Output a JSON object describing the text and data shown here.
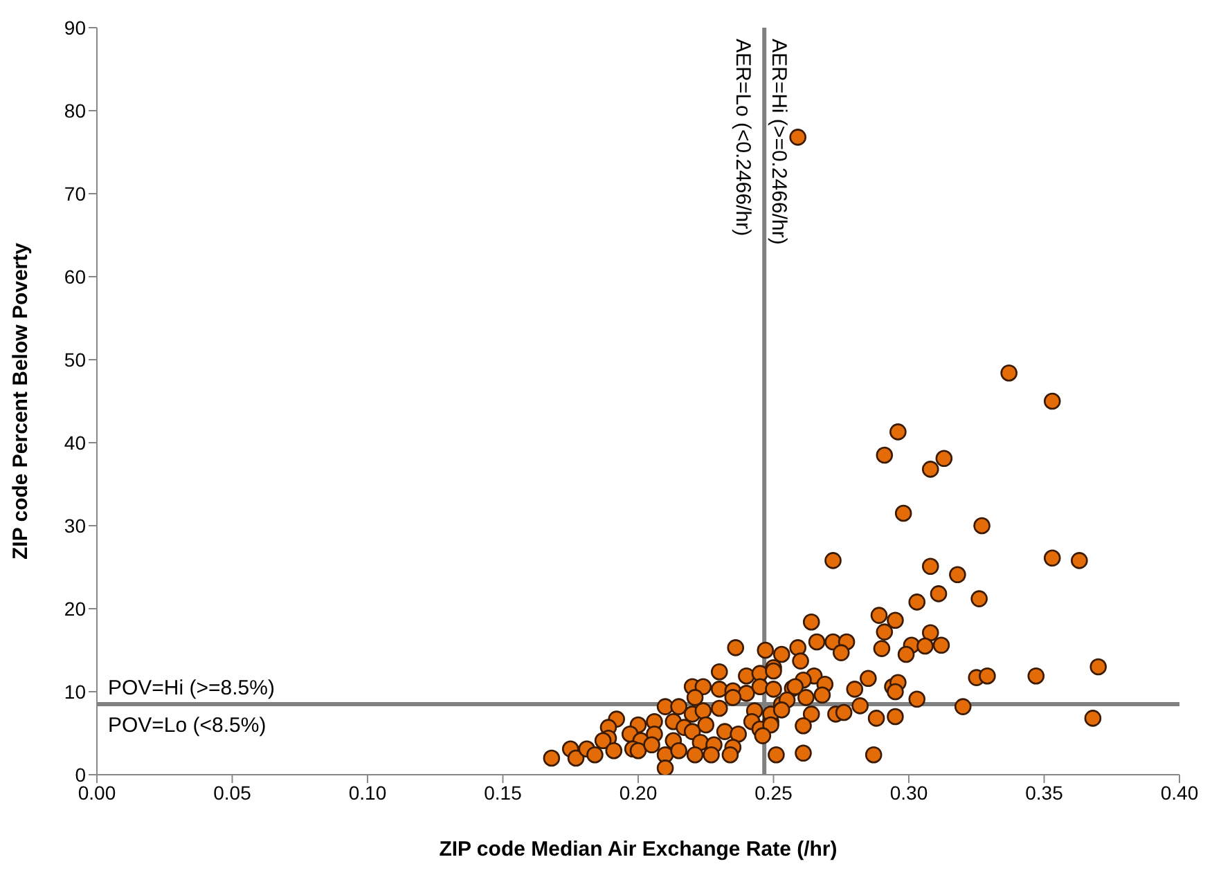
{
  "chart_data": {
    "type": "scatter",
    "xlabel": "ZIP code Median Air Exchange Rate (/hr)",
    "ylabel": "ZIP code Percent Below Poverty",
    "xlim": [
      0,
      0.4
    ],
    "xticks": [
      {
        "value": 0,
        "label": "0.00"
      },
      {
        "value": 0.05,
        "label": "0.05"
      },
      {
        "value": 0.1,
        "label": "0.10"
      },
      {
        "value": 0.15,
        "label": "0.15"
      },
      {
        "value": 0.2,
        "label": "0.20"
      },
      {
        "value": 0.25,
        "label": "0.25"
      },
      {
        "value": 0.3,
        "label": "0.30"
      },
      {
        "value": 0.35,
        "label": "0.35"
      },
      {
        "value": 0.4,
        "label": "0.40"
      }
    ],
    "ylim": [
      0,
      90
    ],
    "yticks": [
      0,
      10,
      20,
      30,
      40,
      50,
      60,
      70,
      80,
      90
    ],
    "grid": false,
    "marker": "circle",
    "ref_lines": [
      {
        "axis": "x",
        "value": 0.2466,
        "color": "#808080",
        "label": "AER=Hi (>=0.2466/hr)"
      },
      {
        "axis": "y",
        "value": 8.5,
        "color": "#808080",
        "label": "POV=Hi (>=8.5%)"
      }
    ],
    "annotations": [
      "AER=Lo (<0.2466/hr)",
      "POV=Lo (<8.5%)"
    ],
    "series": [
      {
        "color": "#e36c09",
        "x": [
          0.337,
          0.353,
          0.296,
          0.291,
          0.313,
          0.308,
          0.298,
          0.327,
          0.272,
          0.308,
          0.353,
          0.363,
          0.318,
          0.311,
          0.303,
          0.326,
          0.289,
          0.295,
          0.264,
          0.291,
          0.308,
          0.29,
          0.266,
          0.272,
          0.277,
          0.275,
          0.301,
          0.306,
          0.312,
          0.299,
          0.259,
          0.253,
          0.26,
          0.25,
          0.265,
          0.261,
          0.269,
          0.285,
          0.28,
          0.294,
          0.296,
          0.295,
          0.303,
          0.325,
          0.329,
          0.347,
          0.37,
          0.32,
          0.368,
          0.273,
          0.276,
          0.282,
          0.288,
          0.295,
          0.264,
          0.261,
          0.251,
          0.261,
          0.287,
          0.253,
          0.249,
          0.257,
          0.268,
          0.259,
          0.236,
          0.247,
          0.23,
          0.24,
          0.245,
          0.25,
          0.22,
          0.224,
          0.23,
          0.235,
          0.24,
          0.245,
          0.25,
          0.258,
          0.221,
          0.235,
          0.255,
          0.262,
          0.21,
          0.215,
          0.22,
          0.224,
          0.23,
          0.243,
          0.249,
          0.253,
          0.192,
          0.189,
          0.2,
          0.206,
          0.213,
          0.217,
          0.225,
          0.232,
          0.237,
          0.242,
          0.245,
          0.249,
          0.246,
          0.189,
          0.187,
          0.197,
          0.201,
          0.206,
          0.213,
          0.22,
          0.223,
          0.228,
          0.235,
          0.168,
          0.175,
          0.177,
          0.181,
          0.184,
          0.191,
          0.198,
          0.2,
          0.205,
          0.21,
          0.215,
          0.221,
          0.227,
          0.234,
          0.21
        ],
        "values": [
          48.4,
          45,
          41.3,
          38.5,
          38.1,
          36.8,
          31.5,
          30,
          25.8,
          25.1,
          26.1,
          25.8,
          24.1,
          21.8,
          20.8,
          21.2,
          19.2,
          18.6,
          18.4,
          17.2,
          17.1,
          15.2,
          16,
          16,
          16,
          14.7,
          15.6,
          15.5,
          15.6,
          14.5,
          15.3,
          14.5,
          13.7,
          12.9,
          11.9,
          11.4,
          10.9,
          11.6,
          10.3,
          10.6,
          11.1,
          10,
          9.1,
          11.7,
          11.9,
          11.9,
          13,
          8.2,
          6.8,
          7.3,
          7.5,
          8.3,
          6.8,
          7,
          7.3,
          5.9,
          2.4,
          2.6,
          2.4,
          8.5,
          6.4,
          10.4,
          9.6,
          76.8,
          15.3,
          15,
          12.4,
          11.9,
          12.2,
          12.5,
          10.6,
          10.6,
          10.3,
          10.1,
          9.8,
          10.6,
          10.3,
          10.6,
          9.3,
          9.3,
          9,
          9.3,
          8.2,
          8.2,
          7.3,
          7.7,
          8,
          7.7,
          7.3,
          7.8,
          6.7,
          5.7,
          6,
          6.4,
          6.4,
          5.7,
          6,
          5.2,
          4.9,
          6.4,
          5.5,
          6,
          4.7,
          4.4,
          4.1,
          4.9,
          4.1,
          4.9,
          4.1,
          5.2,
          3.9,
          3.6,
          3.3,
          2,
          3.1,
          2,
          3.1,
          2.4,
          2.9,
          3.1,
          2.9,
          3.6,
          2.4,
          2.9,
          2.4,
          2.4,
          2.4,
          0.8
        ]
      }
    ]
  }
}
